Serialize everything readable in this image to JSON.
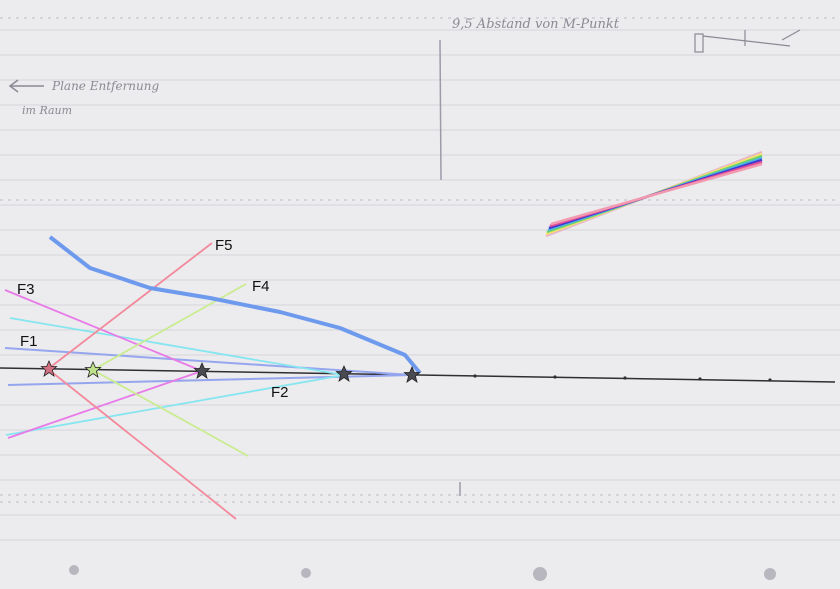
{
  "notes": {
    "top": "9,5 Abstand von M-Punkt",
    "left_line1": "Plane Entfernung",
    "left_line2": "im Raum"
  },
  "labels": {
    "F1": "F1",
    "F2": "F2",
    "F3": "F3",
    "F4": "F4",
    "F5": "F5"
  },
  "colors": {
    "paper": "#ecebee",
    "axis": "#2f2f33",
    "F1": "#95a6ee",
    "F2": "#86e6f0",
    "F3": "#e87ae8",
    "F4": "#c9ec8e",
    "F5": "#f28a9c",
    "curve": "#6e9aee"
  },
  "icons": [
    "star-icon"
  ]
}
